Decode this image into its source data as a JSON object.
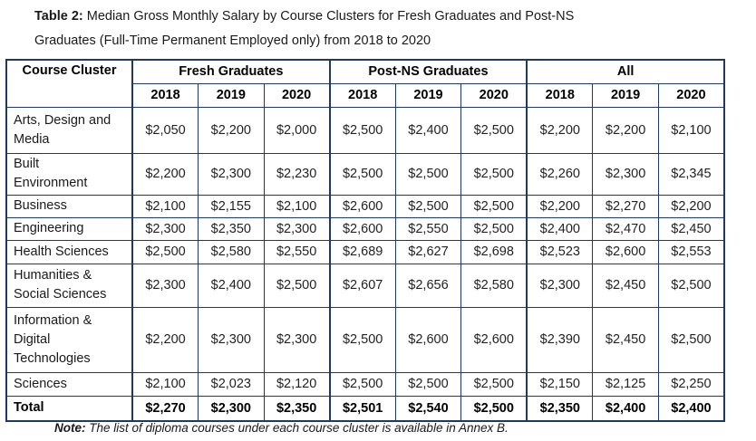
{
  "title": {
    "prefix": "Table 2:",
    "line1": " Median Gross Monthly Salary by Course Clusters for Fresh Graduates and Post-NS",
    "line2": "Graduates (Full-Time Permanent Employed only) from 2018 to 2020"
  },
  "table": {
    "corner_header": "Course Cluster",
    "groups": [
      {
        "label": "Fresh Graduates",
        "years": [
          "2018",
          "2019",
          "2020"
        ]
      },
      {
        "label": "Post-NS Graduates",
        "years": [
          "2018",
          "2019",
          "2020"
        ]
      },
      {
        "label": "All",
        "years": [
          "2018",
          "2019",
          "2020"
        ]
      }
    ],
    "rows": [
      {
        "cluster": "Arts, Design and\nMedia",
        "bold": false,
        "values": [
          "$2,050",
          "$2,200",
          "$2,000",
          "$2,500",
          "$2,400",
          "$2,500",
          "$2,200",
          "$2,200",
          "$2,100"
        ]
      },
      {
        "cluster": "Built\nEnvironment",
        "bold": false,
        "values": [
          "$2,200",
          "$2,300",
          "$2,230",
          "$2,500",
          "$2,500",
          "$2,500",
          "$2,260",
          "$2,300",
          "$2,345"
        ]
      },
      {
        "cluster": "Business",
        "bold": false,
        "values": [
          "$2,100",
          "$2,155",
          "$2,100",
          "$2,600",
          "$2,500",
          "$2,500",
          "$2,200",
          "$2,270",
          "$2,200"
        ]
      },
      {
        "cluster": "Engineering",
        "bold": false,
        "values": [
          "$2,300",
          "$2,350",
          "$2,300",
          "$2,600",
          "$2,550",
          "$2,500",
          "$2,400",
          "$2,470",
          "$2,450"
        ]
      },
      {
        "cluster": "Health Sciences",
        "bold": false,
        "values": [
          "$2,500",
          "$2,580",
          "$2,550",
          "$2,689",
          "$2,627",
          "$2,698",
          "$2,523",
          "$2,600",
          "$2,553"
        ]
      },
      {
        "cluster": "Humanities &\nSocial Sciences",
        "bold": false,
        "values": [
          "$2,300",
          "$2,400",
          "$2,500",
          "$2,607",
          "$2,656",
          "$2,580",
          "$2,300",
          "$2,450",
          "$2,500"
        ]
      },
      {
        "cluster": "Information &\nDigital\nTechnologies",
        "bold": false,
        "values": [
          "$2,200",
          "$2,300",
          "$2,300",
          "$2,500",
          "$2,600",
          "$2,600",
          "$2,390",
          "$2,450",
          "$2,500"
        ]
      },
      {
        "cluster": "Sciences",
        "bold": false,
        "values": [
          "$2,100",
          "$2,023",
          "$2,120",
          "$2,500",
          "$2,500",
          "$2,500",
          "$2,150",
          "$2,125",
          "$2,250"
        ]
      },
      {
        "cluster": "Total",
        "bold": true,
        "values": [
          "$2,270",
          "$2,300",
          "$2,350",
          "$2,501",
          "$2,540",
          "$2,500",
          "$2,350",
          "$2,400",
          "$2,400"
        ]
      }
    ]
  },
  "note": {
    "prefix": "Note:",
    "text": " The list of diploma courses under each course cluster is available in Annex B."
  },
  "colors": {
    "border": "#203864",
    "text": "#1a1a1a",
    "background": "#ffffff"
  }
}
